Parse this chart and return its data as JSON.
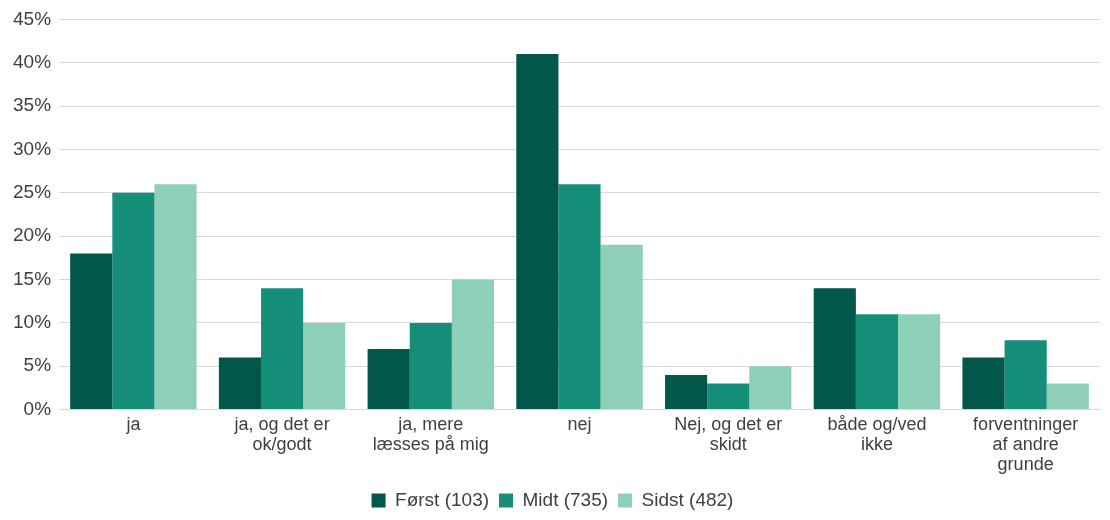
{
  "chart_data": {
    "type": "bar",
    "categories": [
      "ja",
      "ja, og det er ok/godt",
      "ja, mere læsses på mig",
      "nej",
      "Nej, og det er skidt",
      "både og/ved ikke",
      "forventninger af andre grunde"
    ],
    "series": [
      {
        "name": "Først (103)",
        "color": "#00574a",
        "values": [
          18,
          6,
          7,
          41,
          4,
          14,
          6
        ]
      },
      {
        "name": "Midt (735)",
        "color": "#168f7a",
        "values": [
          25,
          14,
          10,
          26,
          3,
          11,
          8
        ]
      },
      {
        "name": "Sidst (482)",
        "color": "#8ecfb8",
        "values": [
          26,
          10,
          15,
          19,
          5,
          11,
          3
        ]
      }
    ],
    "ylim": [
      0,
      45
    ],
    "yticks": [
      {
        "value": 0,
        "label": "0%"
      },
      {
        "value": 5,
        "label": "5%"
      },
      {
        "value": 10,
        "label": "10%"
      },
      {
        "value": 15,
        "label": "15%"
      },
      {
        "value": 20,
        "label": "20%"
      },
      {
        "value": 25,
        "label": "25%"
      },
      {
        "value": 30,
        "label": "30%"
      },
      {
        "value": 35,
        "label": "35%"
      },
      {
        "value": 40,
        "label": "40%"
      },
      {
        "value": 45,
        "label": "45%"
      }
    ],
    "grid": "y",
    "legend": "bottom"
  }
}
